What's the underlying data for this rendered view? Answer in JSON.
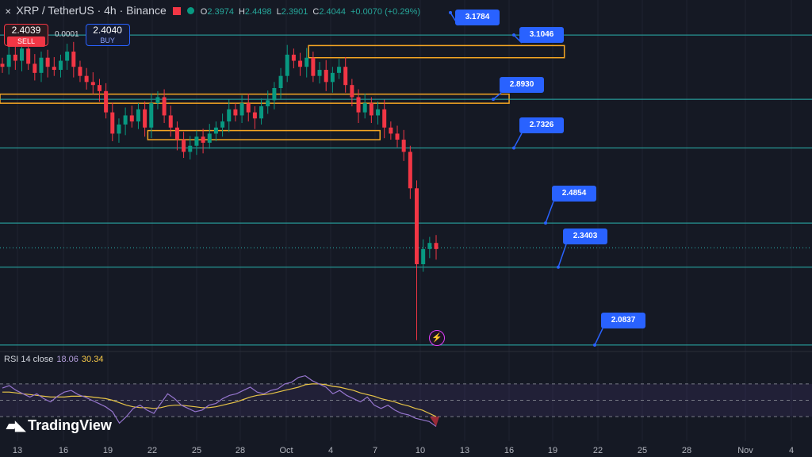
{
  "header": {
    "symbol": "XRP / TetherUS · 4h · Binance",
    "ohlc": [
      {
        "k": "O",
        "v": "2.3974"
      },
      {
        "k": "H",
        "v": "2.4498"
      },
      {
        "k": "L",
        "v": "2.3901"
      },
      {
        "k": "C",
        "v": "2.4044"
      }
    ],
    "change": "+0.0070 (+0.29%)"
  },
  "trade": {
    "sell_price": "2.4039",
    "sell_label": "SELL",
    "spread": "0.0001",
    "buy_price": "2.4040",
    "buy_label": "BUY"
  },
  "colors": {
    "up": "#089981",
    "down": "#f23645",
    "level": "#2bb5b0",
    "callout": "#2962ff",
    "zone": "#f5a623",
    "rsi": "#9575cd",
    "rsi_ma": "#e8c547"
  },
  "rsi": {
    "label": "RSI 14 close",
    "value": "18.06",
    "ma_value": "30.34"
  },
  "brand": "TradingView",
  "chart_data": {
    "type": "candlestick",
    "title": "XRP / TetherUS · 4h · Binance",
    "x_ticks": [
      "13",
      "16",
      "19",
      "22",
      "25",
      "28",
      "Oct",
      "4",
      "7",
      "10",
      "13",
      "16",
      "19",
      "22",
      "25",
      "28",
      "Nov",
      "4"
    ],
    "y_range": [
      2.06,
      3.22
    ],
    "levels": [
      {
        "value": 3.1784,
        "label": "3.1784"
      },
      {
        "value": 3.1046,
        "label": "3.1046"
      },
      {
        "value": 2.893,
        "label": "2.8930"
      },
      {
        "value": 2.7326,
        "label": "2.7326"
      },
      {
        "value": 2.4854,
        "label": "2.4854"
      },
      {
        "value": 2.3403,
        "label": "2.3403"
      },
      {
        "value": 2.0837,
        "label": "2.0837"
      }
    ],
    "zones": [
      {
        "from": 3.03,
        "to": 3.07,
        "x_from": 0.38,
        "x_to": 0.695
      },
      {
        "from": 2.88,
        "to": 2.91,
        "x_from": 0.0,
        "x_to": 0.627
      },
      {
        "from": 2.76,
        "to": 2.79,
        "x_from": 0.182,
        "x_to": 0.468
      }
    ],
    "price_path": [
      3.0,
      3.04,
      3.02,
      3.06,
      3.01,
      2.98,
      3.03,
      3.0,
      2.99,
      3.02,
      3.05,
      3.0,
      2.97,
      2.95,
      2.94,
      2.92,
      2.85,
      2.78,
      2.81,
      2.84,
      2.82,
      2.86,
      2.8,
      2.88,
      2.9,
      2.84,
      2.8,
      2.76,
      2.72,
      2.74,
      2.77,
      2.75,
      2.78,
      2.8,
      2.82,
      2.86,
      2.84,
      2.88,
      2.85,
      2.83,
      2.87,
      2.89,
      2.93,
      2.97,
      3.04,
      3.02,
      3.0,
      3.03,
      2.97,
      2.99,
      2.95,
      2.98,
      3.0,
      2.94,
      2.9,
      2.85,
      2.88,
      2.84,
      2.86,
      2.8,
      2.78,
      2.76,
      2.72,
      2.6,
      2.35,
      2.4,
      2.42,
      2.4
    ],
    "rsi_series": [
      65,
      68,
      62,
      58,
      54,
      58,
      52,
      48,
      55,
      60,
      62,
      57,
      54,
      50,
      46,
      42,
      36,
      22,
      30,
      40,
      44,
      38,
      34,
      46,
      58,
      52,
      44,
      40,
      36,
      38,
      44,
      46,
      52,
      56,
      58,
      62,
      66,
      60,
      58,
      62,
      64,
      70,
      72,
      78,
      80,
      74,
      70,
      66,
      58,
      62,
      56,
      52,
      48,
      54,
      44,
      40,
      44,
      38,
      34,
      32,
      28,
      26,
      24,
      18
    ],
    "rsi_ma_series": [
      60,
      60,
      59,
      58,
      57,
      56,
      55,
      54,
      54,
      54,
      55,
      55,
      55,
      54,
      53,
      52,
      50,
      47,
      44,
      42,
      41,
      41,
      40,
      41,
      43,
      44,
      44,
      43,
      42,
      41,
      41,
      42,
      44,
      46,
      48,
      51,
      54,
      56,
      57,
      58,
      60,
      62,
      64,
      66,
      69,
      70,
      70,
      69,
      67,
      66,
      64,
      62,
      59,
      57,
      55,
      52,
      50,
      48,
      45,
      43,
      40,
      38,
      34,
      30
    ],
    "rsi_levels": [
      70,
      50,
      30
    ]
  }
}
